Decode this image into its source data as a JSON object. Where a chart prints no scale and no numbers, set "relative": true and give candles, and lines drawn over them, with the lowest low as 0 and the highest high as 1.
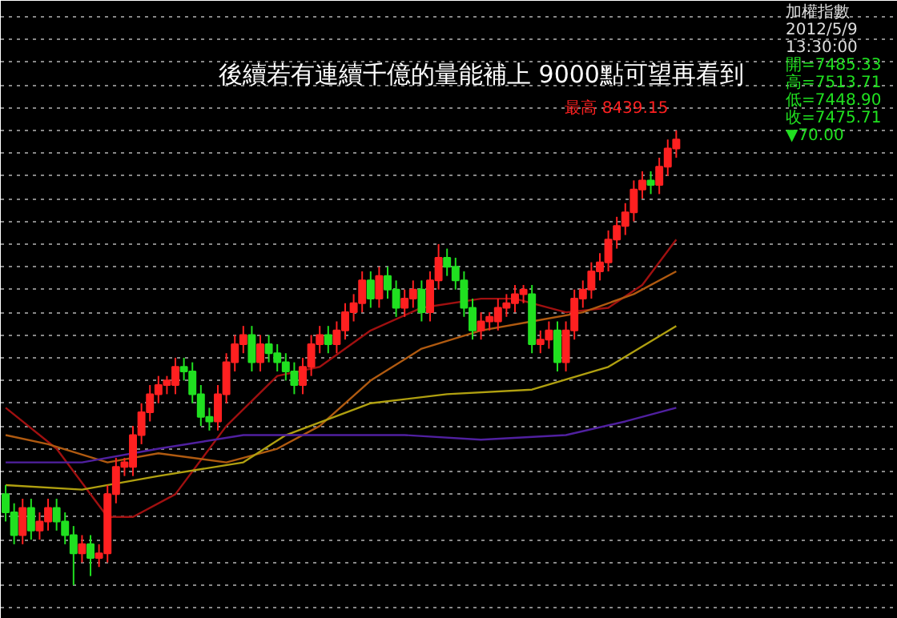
{
  "chart_data": {
    "type": "candlestick",
    "relative": true,
    "title": "後續若有連續千億的量能補上 9000點可望再看到",
    "tick_labels": false,
    "grid": "y",
    "categories": [
      null,
      null,
      null,
      null,
      null,
      null,
      null,
      null,
      null,
      null,
      null,
      null,
      null,
      null,
      null,
      null,
      null,
      null,
      null,
      null,
      null,
      null,
      null,
      null,
      null,
      null,
      null,
      null,
      null,
      null,
      null,
      null,
      null,
      null,
      null,
      null,
      null,
      null,
      null,
      null,
      null,
      null,
      null,
      null,
      null,
      null,
      null,
      null,
      null,
      null,
      null,
      null,
      null,
      null,
      null,
      null,
      null,
      null,
      null,
      null,
      null,
      null,
      null,
      null,
      null,
      null,
      null,
      null,
      null,
      null,
      null,
      null,
      null,
      null,
      null,
      null,
      null,
      null,
      null,
      null
    ],
    "ohlc": [
      [
        0.2,
        0.22,
        0.14,
        0.16
      ],
      [
        0.16,
        0.18,
        0.09,
        0.11
      ],
      [
        0.11,
        0.19,
        0.09,
        0.17
      ],
      [
        0.17,
        0.19,
        0.1,
        0.12
      ],
      [
        0.12,
        0.16,
        0.1,
        0.14
      ],
      [
        0.14,
        0.19,
        0.12,
        0.17
      ],
      [
        0.17,
        0.19,
        0.12,
        0.14
      ],
      [
        0.14,
        0.16,
        0.09,
        0.11
      ],
      [
        0.11,
        0.13,
        0,
        0.07
      ],
      [
        0.07,
        0.11,
        0.05,
        0.09
      ],
      [
        0.09,
        0.11,
        0.02,
        0.06
      ],
      [
        0.06,
        0.09,
        0.04,
        0.07
      ],
      [
        0.07,
        0.22,
        0.05,
        0.2
      ],
      [
        0.2,
        0.28,
        0.18,
        0.26
      ],
      [
        0.26,
        0.28,
        0.24,
        0.27
      ],
      [
        0.26,
        0.35,
        0.24,
        0.33
      ],
      [
        0.33,
        0.4,
        0.31,
        0.38
      ],
      [
        0.38,
        0.44,
        0.36,
        0.42
      ],
      [
        0.42,
        0.46,
        0.4,
        0.44
      ],
      [
        0.44,
        0.46,
        0.42,
        0.45
      ],
      [
        0.44,
        0.5,
        0.42,
        0.48
      ],
      [
        0.48,
        0.5,
        0.45,
        0.47
      ],
      [
        0.47,
        0.49,
        0.4,
        0.42
      ],
      [
        0.42,
        0.44,
        0.35,
        0.37
      ],
      [
        0.37,
        0.39,
        0.34,
        0.36
      ],
      [
        0.36,
        0.44,
        0.34,
        0.42
      ],
      [
        0.42,
        0.51,
        0.4,
        0.49
      ],
      [
        0.49,
        0.55,
        0.47,
        0.53
      ],
      [
        0.53,
        0.57,
        0.51,
        0.55
      ],
      [
        0.55,
        0.57,
        0.47,
        0.49
      ],
      [
        0.49,
        0.55,
        0.47,
        0.53
      ],
      [
        0.53,
        0.55,
        0.49,
        0.51
      ],
      [
        0.51,
        0.53,
        0.47,
        0.49
      ],
      [
        0.49,
        0.51,
        0.45,
        0.47
      ],
      [
        0.47,
        0.49,
        0.42,
        0.44
      ],
      [
        0.44,
        0.5,
        0.42,
        0.48
      ],
      [
        0.48,
        0.55,
        0.46,
        0.53
      ],
      [
        0.53,
        0.57,
        0.51,
        0.55
      ],
      [
        0.55,
        0.57,
        0.51,
        0.53
      ],
      [
        0.53,
        0.58,
        0.51,
        0.56
      ],
      [
        0.56,
        0.62,
        0.54,
        0.6
      ],
      [
        0.6,
        0.64,
        0.58,
        0.62
      ],
      [
        0.62,
        0.69,
        0.6,
        0.67
      ],
      [
        0.67,
        0.69,
        0.61,
        0.63
      ],
      [
        0.63,
        0.7,
        0.61,
        0.68
      ],
      [
        0.68,
        0.7,
        0.63,
        0.65
      ],
      [
        0.65,
        0.67,
        0.59,
        0.61
      ],
      [
        0.61,
        0.65,
        0.59,
        0.63
      ],
      [
        0.63,
        0.67,
        0.61,
        0.65
      ],
      [
        0.65,
        0.67,
        0.58,
        0.6
      ],
      [
        0.6,
        0.69,
        0.58,
        0.67
      ],
      [
        0.67,
        0.75,
        0.65,
        0.72
      ],
      [
        0.72,
        0.74,
        0.68,
        0.7
      ],
      [
        0.7,
        0.72,
        0.65,
        0.67
      ],
      [
        0.67,
        0.69,
        0.59,
        0.61
      ],
      [
        0.61,
        0.63,
        0.54,
        0.56
      ],
      [
        0.56,
        0.6,
        0.54,
        0.58
      ],
      [
        0.58,
        0.6,
        0.56,
        0.59
      ],
      [
        0.58,
        0.63,
        0.56,
        0.61
      ],
      [
        0.61,
        0.64,
        0.59,
        0.62
      ],
      [
        0.62,
        0.66,
        0.6,
        0.64
      ],
      [
        0.64,
        0.66,
        0.62,
        0.65
      ],
      [
        0.64,
        0.66,
        0.51,
        0.53
      ],
      [
        0.53,
        0.56,
        0.51,
        0.54
      ],
      [
        0.54,
        0.58,
        0.52,
        0.56
      ],
      [
        0.56,
        0.58,
        0.47,
        0.49
      ],
      [
        0.49,
        0.58,
        0.47,
        0.56
      ],
      [
        0.56,
        0.65,
        0.54,
        0.63
      ],
      [
        0.63,
        0.67,
        0.61,
        0.65
      ],
      [
        0.65,
        0.71,
        0.63,
        0.69
      ],
      [
        0.69,
        0.73,
        0.67,
        0.71
      ],
      [
        0.71,
        0.78,
        0.69,
        0.76
      ],
      [
        0.76,
        0.81,
        0.74,
        0.79
      ],
      [
        0.79,
        0.84,
        0.77,
        0.82
      ],
      [
        0.82,
        0.89,
        0.8,
        0.87
      ],
      [
        0.87,
        0.91,
        0.85,
        0.89
      ],
      [
        0.89,
        0.91,
        0.86,
        0.88
      ],
      [
        0.88,
        0.94,
        0.86,
        0.92
      ],
      [
        0.92,
        0.98,
        0.9,
        0.96
      ],
      [
        0.96,
        1,
        0.94,
        0.98
      ]
    ],
    "colors": [
      "#20e020",
      "#20e020",
      "#ff2020",
      "#20e020",
      "#ff2020",
      "#ff2020",
      "#20e020",
      "#20e020",
      "#20e020",
      "#ff2020",
      "#20e020",
      "#ff2020",
      "#ff2020",
      "#ff2020",
      "#ff2020",
      "#ff2020",
      "#ff2020",
      "#ff2020",
      "#ff2020",
      "#ff2020",
      "#ff2020",
      "#20e020",
      "#20e020",
      "#20e020",
      "#20e020",
      "#ff2020",
      "#ff2020",
      "#ff2020",
      "#ff2020",
      "#20e020",
      "#ff2020",
      "#20e020",
      "#20e020",
      "#20e020",
      "#20e020",
      "#ff2020",
      "#ff2020",
      "#ff2020",
      "#20e020",
      "#ff2020",
      "#ff2020",
      "#ff2020",
      "#ff2020",
      "#20e020",
      "#ff2020",
      "#20e020",
      "#20e020",
      "#ff2020",
      "#ff2020",
      "#20e020",
      "#ff2020",
      "#ff2020",
      "#20e020",
      "#20e020",
      "#20e020",
      "#20e020",
      "#ff2020",
      "#ff2020",
      "#ff2020",
      "#ff2020",
      "#ff2020",
      "#ff2020",
      "#20e020",
      "#ff2020",
      "#ff2020",
      "#20e020",
      "#ff2020",
      "#ff2020",
      "#ff2020",
      "#ff2020",
      "#ff2020",
      "#ff2020",
      "#ff2020",
      "#ff2020",
      "#ff2020",
      "#ff2020",
      "#20e020",
      "#ff2020",
      "#ff2020",
      "#ff2020"
    ],
    "series": [
      {
        "type": "line",
        "color": "#a01010",
        "values": [
          0.39,
          null,
          null,
          null,
          null,
          null,
          0.3,
          null,
          null,
          null,
          null,
          null,
          0.15,
          null,
          null,
          0.15,
          null,
          null,
          null,
          null,
          0.2,
          null,
          null,
          null,
          null,
          null,
          0.35,
          null,
          null,
          null,
          null,
          null,
          0.46,
          null,
          null,
          null,
          null,
          0.48,
          null,
          null,
          null,
          null,
          null,
          0.56,
          null,
          null,
          null,
          null,
          null,
          0.61,
          null,
          null,
          null,
          null,
          null,
          null,
          0.63,
          null,
          null,
          null,
          0.63,
          null,
          null,
          null,
          null,
          null,
          0.6,
          null,
          null,
          null,
          null,
          0.61,
          null,
          null,
          null,
          0.66,
          null,
          null,
          null,
          0.76
        ]
      },
      {
        "type": "line",
        "color": "#b05a10",
        "values": [
          0.33,
          null,
          null,
          null,
          null,
          0.31,
          null,
          null,
          null,
          null,
          null,
          null,
          0.27,
          null,
          null,
          null,
          null,
          null,
          0.29,
          null,
          null,
          null,
          null,
          null,
          null,
          null,
          0.27,
          null,
          null,
          null,
          null,
          null,
          0.3,
          null,
          null,
          null,
          null,
          0.35,
          null,
          null,
          null,
          null,
          null,
          0.45,
          null,
          null,
          null,
          null,
          null,
          0.52,
          null,
          null,
          null,
          null,
          null,
          null,
          0.56,
          null,
          null,
          null,
          null,
          null,
          0.58,
          null,
          null,
          null,
          null,
          null,
          0.6,
          null,
          null,
          null,
          null,
          null,
          0.64,
          null,
          null,
          null,
          null,
          0.69
        ]
      },
      {
        "type": "line",
        "color": "#b0a010",
        "values": [
          0.22,
          null,
          null,
          null,
          null,
          null,
          null,
          null,
          null,
          0.21,
          null,
          null,
          null,
          null,
          null,
          null,
          null,
          null,
          0.24,
          null,
          null,
          null,
          null,
          null,
          null,
          null,
          null,
          null,
          0.27,
          null,
          null,
          null,
          null,
          0.33,
          null,
          null,
          null,
          null,
          null,
          null,
          null,
          null,
          null,
          0.4,
          null,
          null,
          null,
          null,
          null,
          null,
          null,
          null,
          0.42,
          null,
          null,
          null,
          null,
          null,
          null,
          null,
          null,
          null,
          0.43,
          null,
          null,
          null,
          null,
          null,
          null,
          null,
          null,
          0.48,
          null,
          null,
          null,
          null,
          null,
          null,
          null,
          0.57
        ]
      },
      {
        "type": "line",
        "color": "#5020a0",
        "values": [
          0.27,
          null,
          null,
          null,
          null,
          null,
          null,
          null,
          null,
          0.27,
          null,
          null,
          null,
          null,
          null,
          null,
          null,
          null,
          0.3,
          null,
          null,
          null,
          null,
          null,
          null,
          null,
          null,
          null,
          0.33,
          null,
          null,
          null,
          null,
          null,
          null,
          null,
          null,
          0.33,
          null,
          null,
          null,
          null,
          null,
          null,
          null,
          null,
          null,
          0.33,
          null,
          null,
          null,
          null,
          null,
          null,
          null,
          null,
          0.32,
          null,
          null,
          null,
          null,
          null,
          null,
          null,
          null,
          null,
          0.33,
          null,
          null,
          null,
          null,
          null,
          null,
          0.36,
          null,
          null,
          null,
          null,
          null,
          0.39
        ]
      }
    ],
    "annotations": [
      "最高 8439.15",
      "加權指數",
      "2012/5/9",
      "13:30:00",
      "開=7485.33",
      "高=7513.71",
      "低=7448.90",
      "收=7475.71",
      "▼70.00"
    ]
  }
}
